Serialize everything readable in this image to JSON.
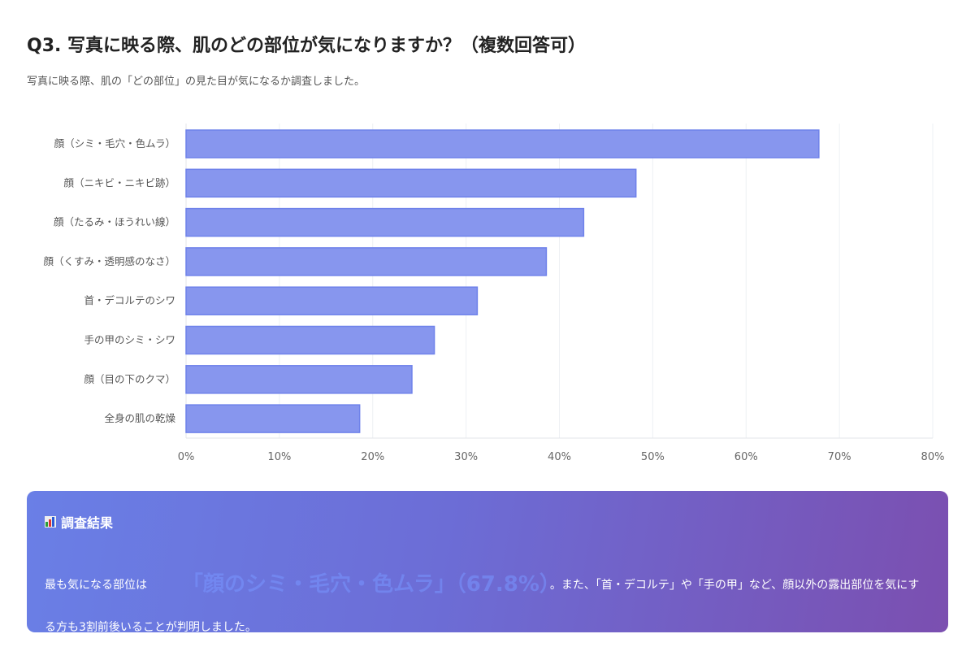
{
  "header": {
    "title": "Q3. 写真に映る際、肌のどの部位が気になりますか？（複数回答可）",
    "subtitle": "写真に映る際、肌の「どの部位」の見た目が気になるか調査しました。"
  },
  "chart_data": {
    "type": "bar",
    "orientation": "horizontal",
    "categories": [
      "顔（シミ・毛穴・色ムラ）",
      "顔（ニキビ・ニキビ跡）",
      "顔（たるみ・ほうれい線）",
      "顔（くすみ・透明感のなさ）",
      "首・デコルテのシワ",
      "手の甲のシミ・シワ",
      "顔（目の下のクマ）",
      "全身の肌の乾燥"
    ],
    "values": [
      67.8,
      48.2,
      42.6,
      38.6,
      31.2,
      26.6,
      24.2,
      18.6
    ],
    "xlim": [
      0,
      80
    ],
    "x_ticks": [
      "0%",
      "10%",
      "20%",
      "30%",
      "40%",
      "50%",
      "60%",
      "70%",
      "80%"
    ],
    "grid": true,
    "bar_color": "#8796ee",
    "bar_border": "#6f82ea"
  },
  "result": {
    "heading": "調査結果",
    "icon": "bar-chart-icon",
    "text_before": "最も気になる部位は",
    "highlight": "「顔のシミ・毛穴・色ムラ」（67.8%）",
    "text_after": "。また、「首・デコルテ」や「手の甲」など、顔以外の露出部位を気にする方も3割前後いることが判明しました。"
  }
}
